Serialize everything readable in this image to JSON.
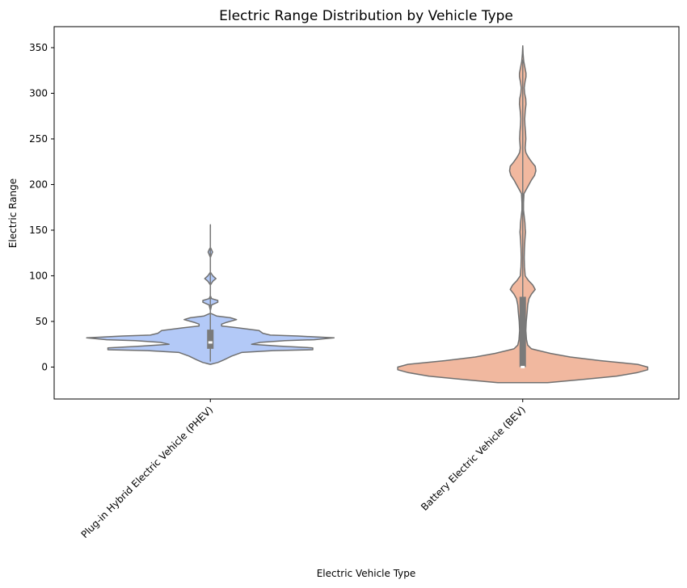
{
  "chart_data": {
    "type": "violin",
    "title": "Electric Range Distribution by Vehicle Type",
    "xlabel": "Electric Vehicle Type",
    "ylabel": "Electric Range",
    "ylim": [
      -35,
      373
    ],
    "yticks": [
      0,
      50,
      100,
      150,
      200,
      250,
      300,
      350
    ],
    "grid": false,
    "categories": [
      "Plug-in Hybrid Electric Vehicle (PHEV)",
      "Battery Electric Vehicle (BEV)"
    ],
    "colors": [
      "#b3c9f7",
      "#f1b89f"
    ],
    "outline_color": "#707070",
    "violins": [
      {
        "category": "Plug-in Hybrid Electric Vehicle (PHEV)",
        "min": 6,
        "max": 153,
        "q1": 20,
        "median": 27,
        "q3": 41,
        "density_profile": [
          [
            3,
            0.0
          ],
          [
            5,
            0.06
          ],
          [
            8,
            0.11
          ],
          [
            12,
            0.17
          ],
          [
            16,
            0.25
          ],
          [
            18,
            0.5
          ],
          [
            19,
            0.82
          ],
          [
            21,
            0.82
          ],
          [
            23,
            0.55
          ],
          [
            25,
            0.33
          ],
          [
            27,
            0.4
          ],
          [
            29,
            0.6
          ],
          [
            30,
            0.83
          ],
          [
            32,
            0.99
          ],
          [
            34,
            0.7
          ],
          [
            35,
            0.48
          ],
          [
            37,
            0.42
          ],
          [
            40,
            0.39
          ],
          [
            43,
            0.22
          ],
          [
            45,
            0.09
          ],
          [
            47,
            0.09
          ],
          [
            49,
            0.13
          ],
          [
            52,
            0.21
          ],
          [
            54,
            0.16
          ],
          [
            56,
            0.05
          ],
          [
            59,
            0.0
          ],
          [
            62,
            0.0
          ],
          [
            68,
            0.01
          ],
          [
            71,
            0.06
          ],
          [
            73,
            0.06
          ],
          [
            75,
            0.01
          ],
          [
            78,
            0.0
          ],
          [
            90,
            0.0
          ],
          [
            94,
            0.02
          ],
          [
            97,
            0.045
          ],
          [
            100,
            0.02
          ],
          [
            104,
            0.0
          ],
          [
            120,
            0.0
          ],
          [
            123,
            0.008
          ],
          [
            126,
            0.018
          ],
          [
            129,
            0.008
          ],
          [
            131,
            0.0
          ],
          [
            156,
            0.0
          ]
        ]
      },
      {
        "category": "Battery Electric Vehicle (BEV)",
        "min": 0,
        "max": 337,
        "q1": 0,
        "median": 0,
        "q3": 77,
        "density_profile": [
          [
            -17,
            0.2
          ],
          [
            -14,
            0.45
          ],
          [
            -10,
            0.75
          ],
          [
            -6,
            0.92
          ],
          [
            -3,
            1.0
          ],
          [
            0,
            1.0
          ],
          [
            3,
            0.92
          ],
          [
            7,
            0.62
          ],
          [
            11,
            0.38
          ],
          [
            15,
            0.22
          ],
          [
            18,
            0.13
          ],
          [
            20,
            0.07
          ],
          [
            24,
            0.04
          ],
          [
            30,
            0.03
          ],
          [
            40,
            0.025
          ],
          [
            50,
            0.028
          ],
          [
            60,
            0.035
          ],
          [
            68,
            0.04
          ],
          [
            75,
            0.05
          ],
          [
            80,
            0.07
          ],
          [
            85,
            0.1
          ],
          [
            90,
            0.08
          ],
          [
            95,
            0.045
          ],
          [
            100,
            0.02
          ],
          [
            110,
            0.014
          ],
          [
            120,
            0.012
          ],
          [
            130,
            0.014
          ],
          [
            140,
            0.018
          ],
          [
            148,
            0.022
          ],
          [
            152,
            0.02
          ],
          [
            158,
            0.018
          ],
          [
            165,
            0.012
          ],
          [
            172,
            0.006
          ],
          [
            180,
            0.006
          ],
          [
            190,
            0.01
          ],
          [
            195,
            0.03
          ],
          [
            200,
            0.05
          ],
          [
            205,
            0.07
          ],
          [
            210,
            0.095
          ],
          [
            215,
            0.105
          ],
          [
            220,
            0.1
          ],
          [
            225,
            0.07
          ],
          [
            230,
            0.045
          ],
          [
            235,
            0.025
          ],
          [
            240,
            0.02
          ],
          [
            250,
            0.025
          ],
          [
            258,
            0.022
          ],
          [
            265,
            0.018
          ],
          [
            272,
            0.016
          ],
          [
            280,
            0.02
          ],
          [
            288,
            0.026
          ],
          [
            294,
            0.024
          ],
          [
            300,
            0.015
          ],
          [
            306,
            0.012
          ],
          [
            312,
            0.018
          ],
          [
            318,
            0.026
          ],
          [
            322,
            0.026
          ],
          [
            328,
            0.018
          ],
          [
            335,
            0.008
          ],
          [
            343,
            0.003
          ],
          [
            352,
            0.0
          ]
        ]
      }
    ]
  }
}
